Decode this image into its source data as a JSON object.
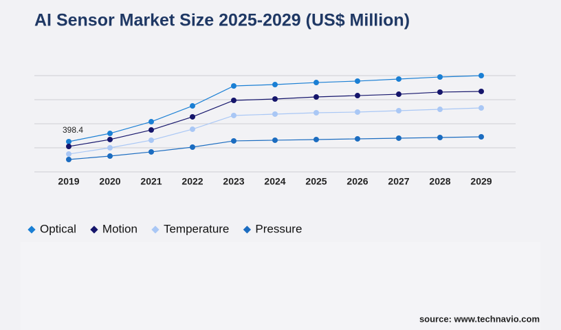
{
  "chart_data": {
    "type": "line",
    "title": "AI Sensor Market Size 2025-2029 (US$ Million)",
    "source": "source: www.technavio.com",
    "categories": [
      "2019",
      "2020",
      "2021",
      "2022",
      "2023",
      "2024",
      "2025",
      "2026",
      "2027",
      "2028",
      "2029"
    ],
    "ylim": [
      0,
      1268
    ],
    "grid": true,
    "legend": "bottom-left",
    "series": [
      {
        "name": "Optical",
        "color": "#1a7fd4",
        "values": [
          398.4,
          507,
          661,
          869,
          1132,
          1150,
          1177,
          1196,
          1223,
          1250,
          1268
        ],
        "value_labels": [
          "398.4",
          null,
          null,
          null,
          null,
          null,
          null,
          null,
          null,
          null,
          null
        ]
      },
      {
        "name": "Motion",
        "color": "#15156b",
        "values": [
          335,
          426,
          552,
          725,
          942,
          960,
          987,
          1005,
          1023,
          1051,
          1060
        ]
      },
      {
        "name": "Temperature",
        "color": "#a9c7f5",
        "values": [
          235,
          317,
          417,
          562,
          743,
          761,
          779,
          788,
          806,
          824,
          842
        ]
      },
      {
        "name": "Pressure",
        "color": "#1b6cc0",
        "values": [
          163,
          208,
          263,
          326,
          408,
          417,
          426,
          435,
          444,
          453,
          462
        ]
      }
    ]
  }
}
